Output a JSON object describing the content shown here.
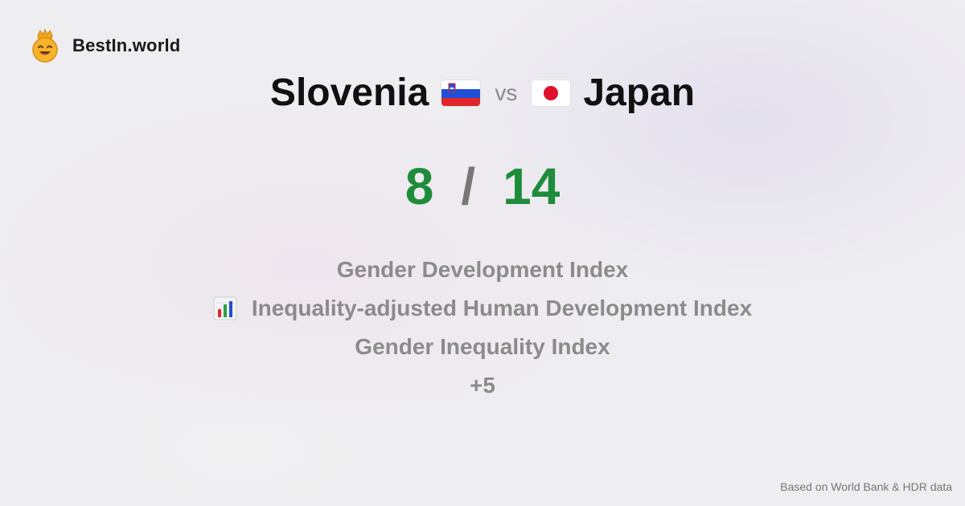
{
  "brand": {
    "name": "BestIn.world",
    "logo_icon": "crowned-smiley-icon"
  },
  "comparison": {
    "left_country": "Slovenia",
    "right_country": "Japan",
    "vs_label": "vs",
    "left_flag_icon": "slovenia-flag-icon",
    "right_flag_icon": "japan-flag-icon"
  },
  "score": {
    "left": "8",
    "separator": "/",
    "right": "14"
  },
  "metrics": [
    {
      "label": "Gender Development Index"
    },
    {
      "label": "Inequality-adjusted Human Development Index",
      "icon": "bar-chart-icon"
    },
    {
      "label": "Gender Inequality Index"
    },
    {
      "label": "+5"
    }
  ],
  "footer": {
    "source": "Based on World Bank & HDR data"
  },
  "colors": {
    "score_green": "#1e8c3a",
    "muted_text": "#8b8b8b",
    "title_text": "#111111"
  }
}
